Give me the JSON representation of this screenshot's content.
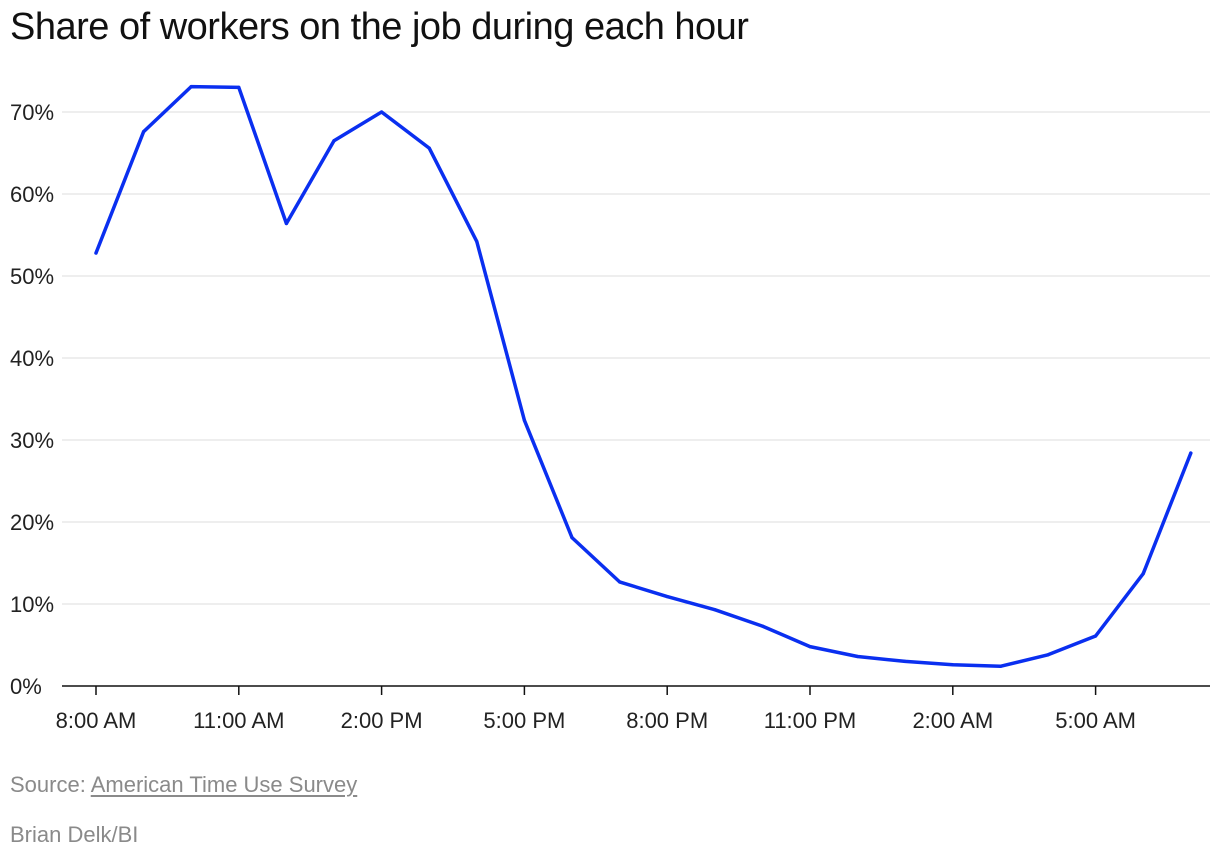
{
  "chart_data": {
    "type": "line",
    "title": "Share of workers on the job during each hour",
    "xlabel": "",
    "ylabel": "",
    "x_tick_labels": [
      "8:00 AM",
      "11:00 AM",
      "2:00 PM",
      "5:00 PM",
      "8:00 PM",
      "11:00 PM",
      "2:00 AM",
      "5:00 AM"
    ],
    "y_tick_labels": [
      "0%",
      "10%",
      "20%",
      "30%",
      "40%",
      "50%",
      "60%",
      "70%"
    ],
    "y_ticks": [
      0,
      10,
      20,
      30,
      40,
      50,
      60,
      70
    ],
    "ylim": [
      0,
      73
    ],
    "grid": true,
    "series": [
      {
        "color": "#0a2ff0",
        "x": [
          "8:00 AM",
          "9:00 AM",
          "10:00 AM",
          "11:00 AM",
          "12:00 PM",
          "1:00 PM",
          "2:00 PM",
          "3:00 PM",
          "4:00 PM",
          "5:00 PM",
          "6:00 PM",
          "7:00 PM",
          "8:00 PM",
          "9:00 PM",
          "10:00 PM",
          "11:00 PM",
          "12:00 AM",
          "1:00 AM",
          "2:00 AM",
          "3:00 AM",
          "4:00 AM",
          "5:00 AM",
          "6:00 AM",
          "7:00 AM"
        ],
        "values": [
          52.8,
          67.6,
          73.1,
          73.0,
          56.4,
          66.5,
          70.0,
          65.6,
          54.2,
          32.4,
          18.1,
          12.7,
          10.9,
          9.3,
          7.3,
          4.8,
          3.6,
          3.0,
          2.6,
          2.4,
          3.8,
          6.1,
          13.7,
          28.4
        ]
      }
    ]
  },
  "source": {
    "prefix": "Source: ",
    "link_text": "American Time Use Survey"
  },
  "credit": "Brian Delk/BI"
}
